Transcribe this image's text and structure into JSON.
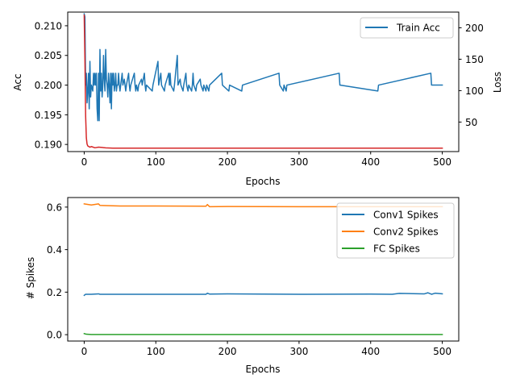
{
  "chart_data": [
    {
      "type": "line",
      "xlabel": "Epochs",
      "ylabel": "Acc",
      "y2label": "Loss",
      "xlim": [
        -23,
        523
      ],
      "ylim": [
        0.1888,
        0.2123
      ],
      "y2lim": [
        3,
        225
      ],
      "xticks": [
        0,
        100,
        200,
        300,
        400,
        500
      ],
      "yticks": [
        0.19,
        0.195,
        0.2,
        0.205,
        0.21
      ],
      "yticklabels": [
        "0.190",
        "0.195",
        "0.200",
        "0.205",
        "0.210"
      ],
      "y2ticks": [
        50,
        100,
        150,
        200
      ],
      "legend": {
        "placement": "upper right",
        "entries": [
          "Train Acc"
        ]
      },
      "grid": false,
      "series": [
        {
          "name": "Train Acc",
          "axis": "left",
          "color": "#1f77b4",
          "points": [
            [
              0,
              0.212
            ],
            [
              1,
              0.2115
            ],
            [
              2,
              0.2
            ],
            [
              3,
              0.202
            ],
            [
              4,
              0.197
            ],
            [
              5,
              0.199
            ],
            [
              6,
              0.202
            ],
            [
              7,
              0.196
            ],
            [
              8,
              0.204
            ],
            [
              9,
              0.198
            ],
            [
              10,
              0.2
            ],
            [
              12,
              0.199
            ],
            [
              13,
              0.202
            ],
            [
              14,
              0.2
            ],
            [
              15,
              0.202
            ],
            [
              16,
              0.2
            ],
            [
              17,
              0.202
            ],
            [
              18,
              0.196
            ],
            [
              19,
              0.194
            ],
            [
              20,
              0.202
            ],
            [
              21,
              0.194
            ],
            [
              22,
              0.206
            ],
            [
              23,
              0.199
            ],
            [
              24,
              0.202
            ],
            [
              25,
              0.198
            ],
            [
              26,
              0.2
            ],
            [
              27,
              0.205
            ],
            [
              28,
              0.201
            ],
            [
              29,
              0.199
            ],
            [
              30,
              0.206
            ],
            [
              31,
              0.201
            ],
            [
              32,
              0.2
            ],
            [
              33,
              0.198
            ],
            [
              34,
              0.202
            ],
            [
              35,
              0.2
            ],
            [
              36,
              0.197
            ],
            [
              37,
              0.202
            ],
            [
              38,
              0.196
            ],
            [
              39,
              0.202
            ],
            [
              40,
              0.2
            ],
            [
              41,
              0.202
            ],
            [
              42,
              0.199
            ],
            [
              43,
              0.2
            ],
            [
              44,
              0.202
            ],
            [
              45,
              0.199
            ],
            [
              46,
              0.2
            ],
            [
              47,
              0.2
            ],
            [
              48,
              0.202
            ],
            [
              49,
              0.2
            ],
            [
              50,
              0.199
            ],
            [
              51,
              0.2
            ],
            [
              53,
              0.202
            ],
            [
              54,
              0.2
            ],
            [
              56,
              0.201
            ],
            [
              57,
              0.2
            ],
            [
              58,
              0.199
            ],
            [
              59,
              0.2
            ],
            [
              62,
              0.202
            ],
            [
              63,
              0.2
            ],
            [
              64,
              0.199
            ],
            [
              65,
              0.2
            ],
            [
              70,
              0.202
            ],
            [
              71,
              0.2
            ],
            [
              72,
              0.199
            ],
            [
              73,
              0.2
            ],
            [
              75,
              0.199
            ],
            [
              76,
              0.2
            ],
            [
              80,
              0.201
            ],
            [
              81,
              0.2
            ],
            [
              84,
              0.202
            ],
            [
              85,
              0.2
            ],
            [
              86,
              0.199
            ],
            [
              87,
              0.2
            ],
            [
              95,
              0.199
            ],
            [
              96,
              0.2
            ],
            [
              103,
              0.204
            ],
            [
              104,
              0.2
            ],
            [
              107,
              0.202
            ],
            [
              108,
              0.2
            ],
            [
              112,
              0.199
            ],
            [
              113,
              0.2
            ],
            [
              118,
              0.202
            ],
            [
              119,
              0.2
            ],
            [
              120,
              0.202
            ],
            [
              121,
              0.2
            ],
            [
              125,
              0.199
            ],
            [
              126,
              0.2
            ],
            [
              130,
              0.205
            ],
            [
              131,
              0.2
            ],
            [
              134,
              0.201
            ],
            [
              135,
              0.2
            ],
            [
              138,
              0.199
            ],
            [
              139,
              0.2
            ],
            [
              142,
              0.202
            ],
            [
              143,
              0.2
            ],
            [
              145,
              0.199
            ],
            [
              146,
              0.2
            ],
            [
              150,
              0.199
            ],
            [
              151,
              0.2
            ],
            [
              152,
              0.202
            ],
            [
              153,
              0.2
            ],
            [
              156,
              0.199
            ],
            [
              157,
              0.2
            ],
            [
              162,
              0.201
            ],
            [
              163,
              0.2
            ],
            [
              166,
              0.199
            ],
            [
              167,
              0.2
            ],
            [
              170,
              0.199
            ],
            [
              171,
              0.2
            ],
            [
              174,
              0.199
            ],
            [
              175,
              0.2
            ],
            [
              192,
              0.202
            ],
            [
              193,
              0.2
            ],
            [
              202,
              0.199
            ],
            [
              203,
              0.2
            ],
            [
              220,
              0.199
            ],
            [
              221,
              0.2
            ],
            [
              272,
              0.202
            ],
            [
              273,
              0.2
            ],
            [
              278,
              0.199
            ],
            [
              279,
              0.2
            ],
            [
              282,
              0.199
            ],
            [
              283,
              0.2
            ],
            [
              356,
              0.202
            ],
            [
              357,
              0.2
            ],
            [
              410,
              0.199
            ],
            [
              411,
              0.2
            ],
            [
              484,
              0.202
            ],
            [
              485,
              0.2
            ],
            [
              500,
              0.2
            ]
          ]
        },
        {
          "name": "Loss",
          "axis": "right",
          "color": "#d62728",
          "points": [
            [
              0,
              220
            ],
            [
              1,
              150
            ],
            [
              2,
              60
            ],
            [
              3,
              25
            ],
            [
              4,
              15
            ],
            [
              5,
              12
            ],
            [
              8,
              10
            ],
            [
              10,
              11
            ],
            [
              15,
              9
            ],
            [
              20,
              10
            ],
            [
              30,
              9
            ],
            [
              40,
              8.5
            ],
            [
              60,
              8.5
            ],
            [
              100,
              8.4
            ],
            [
              150,
              8.4
            ],
            [
              200,
              8.4
            ],
            [
              300,
              8.4
            ],
            [
              400,
              8.4
            ],
            [
              500,
              8.4
            ]
          ]
        }
      ]
    },
    {
      "type": "line",
      "xlabel": "Epochs",
      "ylabel": "# Spikes",
      "xlim": [
        -23,
        523
      ],
      "ylim": [
        -0.03,
        0.645
      ],
      "xticks": [
        0,
        100,
        200,
        300,
        400,
        500
      ],
      "yticks": [
        0.0,
        0.2,
        0.4,
        0.6
      ],
      "yticklabels": [
        "0.0",
        "0.2",
        "0.4",
        "0.6"
      ],
      "legend": {
        "placement": "upper right",
        "entries": [
          "Conv1 Spikes",
          "Conv2 Spikes",
          "FC Spikes"
        ]
      },
      "grid": false,
      "series": [
        {
          "name": "Conv1 Spikes",
          "color": "#1f77b4",
          "points": [
            [
              0,
              0.185
            ],
            [
              2,
              0.19
            ],
            [
              10,
              0.19
            ],
            [
              20,
              0.192
            ],
            [
              22,
              0.19
            ],
            [
              100,
              0.19
            ],
            [
              170,
              0.19
            ],
            [
              172,
              0.195
            ],
            [
              175,
              0.191
            ],
            [
              200,
              0.192
            ],
            [
              300,
              0.19
            ],
            [
              400,
              0.191
            ],
            [
              430,
              0.19
            ],
            [
              440,
              0.194
            ],
            [
              460,
              0.193
            ],
            [
              475,
              0.192
            ],
            [
              480,
              0.197
            ],
            [
              485,
              0.19
            ],
            [
              490,
              0.195
            ],
            [
              500,
              0.192
            ]
          ]
        },
        {
          "name": "Conv2 Spikes",
          "color": "#ff7f0e",
          "points": [
            [
              0,
              0.615
            ],
            [
              10,
              0.61
            ],
            [
              20,
              0.615
            ],
            [
              22,
              0.608
            ],
            [
              50,
              0.605
            ],
            [
              100,
              0.605
            ],
            [
              170,
              0.604
            ],
            [
              172,
              0.612
            ],
            [
              175,
              0.602
            ],
            [
              200,
              0.603
            ],
            [
              300,
              0.602
            ],
            [
              400,
              0.602
            ],
            [
              500,
              0.602
            ]
          ]
        },
        {
          "name": "FC Spikes",
          "color": "#2ca02c",
          "points": [
            [
              0,
              0.005
            ],
            [
              3,
              0.002
            ],
            [
              10,
              0.001
            ],
            [
              500,
              0.001
            ]
          ]
        }
      ]
    }
  ]
}
